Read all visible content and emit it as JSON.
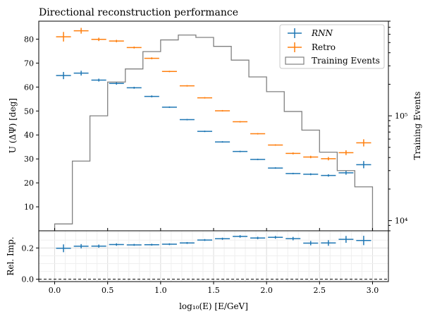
{
  "chart_data": [
    {
      "type": "line",
      "title": "Directional reconstruction performance",
      "ylabel": "U (ΔΨ) [deg]",
      "y2label": "Training Events",
      "xlim": [
        -0.15,
        3.15
      ],
      "ylim": [
        0,
        87.5
      ],
      "y2lim": [
        8000,
        800000
      ],
      "y2scale": "log",
      "yticks": [
        "10",
        "20",
        "30",
        "40",
        "50",
        "60",
        "70",
        "80"
      ],
      "y2ticks": [
        "10⁴",
        "10⁵"
      ],
      "grid": false,
      "legend_position": "top-right",
      "bin_edges": [
        0.0,
        0.167,
        0.333,
        0.5,
        0.667,
        0.833,
        1.0,
        1.167,
        1.333,
        1.5,
        1.667,
        1.833,
        2.0,
        2.167,
        2.333,
        2.5,
        2.667,
        2.833,
        3.0
      ],
      "series": [
        {
          "name": "RNN",
          "color": "#1f77b4",
          "values": [
            64.8,
            65.8,
            62.9,
            61.5,
            59.7,
            56.1,
            51.6,
            46.4,
            41.5,
            37.1,
            33.1,
            29.8,
            26.2,
            23.9,
            23.6,
            23.1,
            24.2,
            27.6
          ],
          "yerr": [
            1.5,
            1.0,
            0.6,
            0.5,
            0.4,
            0.4,
            0.3,
            0.3,
            0.3,
            0.3,
            0.3,
            0.3,
            0.3,
            0.3,
            0.4,
            0.5,
            0.8,
            1.5
          ]
        },
        {
          "name": "Retro",
          "color": "#ff7f0e",
          "values": [
            81.0,
            83.5,
            79.9,
            79.2,
            76.5,
            72.0,
            66.5,
            60.5,
            55.5,
            50.1,
            45.5,
            40.5,
            35.8,
            32.3,
            30.8,
            30.1,
            32.6,
            36.7
          ],
          "yerr": [
            2.0,
            1.2,
            0.7,
            0.5,
            0.4,
            0.4,
            0.3,
            0.3,
            0.3,
            0.3,
            0.3,
            0.3,
            0.3,
            0.4,
            0.5,
            0.7,
            1.0,
            1.5
          ]
        },
        {
          "name": "Training Events",
          "color": "#808080",
          "histogram": true,
          "values": [
            9300,
            37000,
            100000,
            210000,
            280000,
            410000,
            530000,
            590000,
            560000,
            460000,
            340000,
            235000,
            170000,
            110000,
            73000,
            45000,
            30000,
            21000
          ]
        }
      ]
    },
    {
      "type": "line",
      "xlabel": "log₁₀(E) [E/GeV]",
      "ylabel": "Rel. Imp.",
      "xlim": [
        -0.15,
        3.15
      ],
      "ylim": [
        -0.015,
        0.31
      ],
      "xticks": [
        "0.0",
        "0.5",
        "1.0",
        "1.5",
        "2.0",
        "2.5",
        "3.0"
      ],
      "yticks": [
        "0.0",
        "0.2"
      ],
      "grid": true,
      "reference_line": 0,
      "bin_edges": [
        0.0,
        0.167,
        0.333,
        0.5,
        0.667,
        0.833,
        1.0,
        1.167,
        1.333,
        1.5,
        1.667,
        1.833,
        2.0,
        2.167,
        2.333,
        2.5,
        2.667,
        2.833,
        3.0
      ],
      "series": [
        {
          "name": "",
          "color": "#1f77b4",
          "values": [
            0.198,
            0.211,
            0.212,
            0.222,
            0.22,
            0.221,
            0.224,
            0.232,
            0.251,
            0.259,
            0.274,
            0.264,
            0.268,
            0.26,
            0.231,
            0.232,
            0.255,
            0.248
          ],
          "yerr": [
            0.025,
            0.014,
            0.01,
            0.008,
            0.006,
            0.006,
            0.006,
            0.006,
            0.006,
            0.007,
            0.008,
            0.008,
            0.009,
            0.011,
            0.014,
            0.018,
            0.022,
            0.03
          ]
        }
      ]
    }
  ]
}
